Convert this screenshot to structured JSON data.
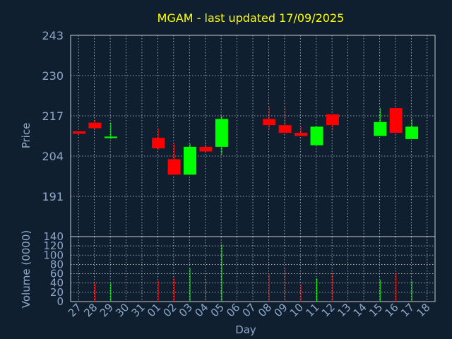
{
  "chart_data": {
    "type": "candlestick",
    "title": "MGAM - last updated 17/09/2025",
    "price_axis": {
      "label": "Price",
      "ylim": [
        178,
        243
      ],
      "ticks": [
        243,
        230,
        217,
        204,
        191
      ]
    },
    "volume_axis": {
      "label": "Volume (0000)",
      "ylim": [
        0,
        140
      ],
      "ticks": [
        140,
        120,
        100,
        80,
        60,
        40,
        20,
        0
      ]
    },
    "xlabel": "Day",
    "x_ticks": [
      "27",
      "28",
      "29",
      "30",
      "31",
      "01",
      "02",
      "03",
      "04",
      "05",
      "06",
      "07",
      "08",
      "09",
      "10",
      "11",
      "12",
      "13",
      "14",
      "15",
      "16",
      "17",
      "18"
    ],
    "grid": true,
    "colors": {
      "background": "#0f1f30",
      "up": "#00ff00",
      "down": "#ff0000",
      "axis": "#8fa8c8",
      "title": "#ffff00",
      "grid": "#c8c8c8"
    },
    "candles": [
      {
        "day": "27",
        "open": 212.0,
        "high": 212.0,
        "low": 211.2,
        "close": 211.2,
        "volume": 0
      },
      {
        "day": "28",
        "open": 214.8,
        "high": 215.6,
        "low": 212.9,
        "close": 213.0,
        "volume": 40
      },
      {
        "day": "29",
        "open": 209.8,
        "high": 214.8,
        "low": 209.5,
        "close": 210.3,
        "volume": 40
      },
      {
        "day": "01",
        "open": 209.9,
        "high": 212.9,
        "low": 206.0,
        "close": 206.5,
        "volume": 45
      },
      {
        "day": "02",
        "open": 203.0,
        "high": 208.0,
        "low": 198.0,
        "close": 198.0,
        "volume": 50
      },
      {
        "day": "03",
        "open": 198.0,
        "high": 208.0,
        "low": 198.0,
        "close": 207.0,
        "volume": 72
      },
      {
        "day": "04",
        "open": 207.0,
        "high": 209.0,
        "low": 205.0,
        "close": 205.5,
        "volume": 50
      },
      {
        "day": "05",
        "open": 207.0,
        "high": 217.0,
        "low": 204.5,
        "close": 216.0,
        "volume": 123
      },
      {
        "day": "08",
        "open": 216.0,
        "high": 220.0,
        "low": 212.5,
        "close": 214.0,
        "volume": 60
      },
      {
        "day": "09",
        "open": 214.0,
        "high": 220.0,
        "low": 211.5,
        "close": 211.5,
        "volume": 73
      },
      {
        "day": "10",
        "open": 211.5,
        "high": 213.5,
        "low": 210.5,
        "close": 210.5,
        "volume": 37
      },
      {
        "day": "11",
        "open": 207.5,
        "high": 213.5,
        "low": 207.5,
        "close": 213.5,
        "volume": 50
      },
      {
        "day": "12",
        "open": 217.5,
        "high": 217.5,
        "low": 212.5,
        "close": 214.0,
        "volume": 60
      },
      {
        "day": "15",
        "open": 210.5,
        "high": 219.5,
        "low": 210.5,
        "close": 215.0,
        "volume": 47
      },
      {
        "day": "16",
        "open": 219.5,
        "high": 219.5,
        "low": 211.5,
        "close": 211.5,
        "volume": 60
      },
      {
        "day": "17",
        "open": 209.5,
        "high": 216.0,
        "low": 209.5,
        "close": 213.5,
        "volume": 45
      }
    ]
  }
}
